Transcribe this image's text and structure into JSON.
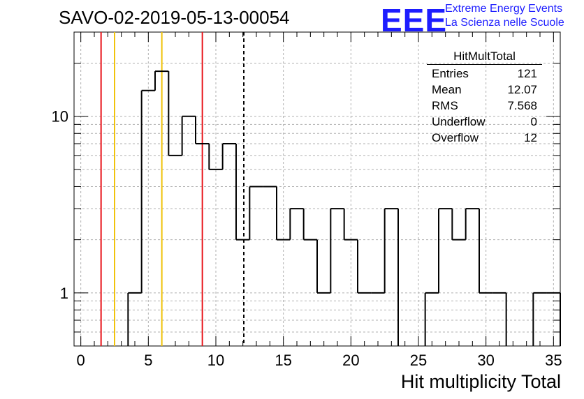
{
  "title": "SAVO-02-2019-05-13-00054",
  "logo": {
    "mark": "EEE",
    "line1": "Extreme Energy Events",
    "line2": "La Scienza nelle Scuole",
    "color": "#1d1dff"
  },
  "stats": {
    "name": "HitMultTotal",
    "rows": [
      {
        "label": "Entries",
        "value": "121"
      },
      {
        "label": "Mean",
        "value": "12.07"
      },
      {
        "label": "RMS",
        "value": "7.568"
      },
      {
        "label": "Underflow",
        "value": "0"
      },
      {
        "label": "Overflow",
        "value": "12"
      }
    ]
  },
  "chart_data": {
    "type": "histogram",
    "title": "SAVO-02-2019-05-13-00054",
    "xlabel": "Hit multiplicity Total",
    "ylabel": "",
    "xlim": [
      -0.5,
      35.5
    ],
    "ylim": [
      0.5,
      30
    ],
    "yscale": "log",
    "grid": true,
    "bin_width": 1,
    "bins_start": -0.5,
    "values": [
      0,
      0,
      0,
      0,
      1,
      14,
      18,
      6,
      10,
      7,
      5,
      7,
      2,
      4,
      4,
      2,
      3,
      2,
      1,
      3,
      2,
      1,
      1,
      3,
      0,
      0,
      1,
      3,
      2,
      3,
      1,
      1,
      0,
      0,
      1,
      1
    ],
    "x_ticks": [
      0,
      5,
      10,
      15,
      20,
      25,
      30,
      35
    ],
    "y_ticks": [
      {
        "value": 1,
        "label": "1"
      },
      {
        "value": 10,
        "label": "10"
      }
    ],
    "vertical_lines": [
      {
        "x": 1.5,
        "color": "#e8141a",
        "style": "solid"
      },
      {
        "x": 2.5,
        "color": "#f0c30c",
        "style": "solid"
      },
      {
        "x": 6.0,
        "color": "#f0c30c",
        "style": "solid"
      },
      {
        "x": 9.0,
        "color": "#e8141a",
        "style": "solid"
      },
      {
        "x": 12.07,
        "color": "#000000",
        "style": "dashed"
      }
    ]
  }
}
